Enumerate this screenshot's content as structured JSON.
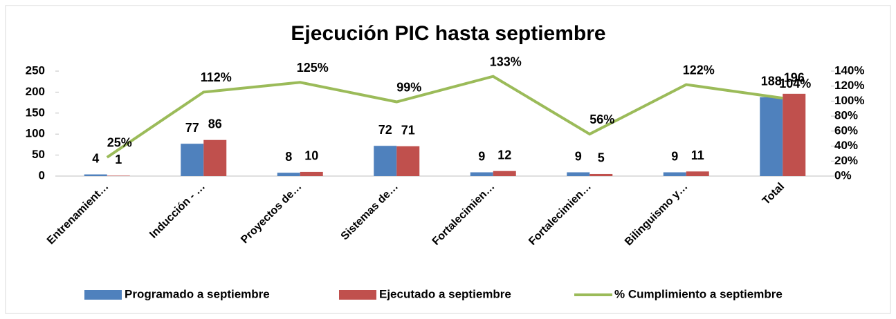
{
  "chart_data": {
    "type": "bar-line",
    "title": "Ejecución PIC hasta septiembre",
    "categories": [
      "Entrenamient…",
      "Inducción - …",
      "Proyectos de…",
      "Sistemas de…",
      "Fortalecimien…",
      "Fortalecimien…",
      "Bilinguismo y…",
      "Total"
    ],
    "series": [
      {
        "name": "Programado a septiembre",
        "type": "bar",
        "color": "#4f81bd",
        "values": [
          4,
          77,
          8,
          72,
          9,
          9,
          9,
          188
        ]
      },
      {
        "name": "Ejecutado a septiembre",
        "type": "bar",
        "color": "#c0504d",
        "values": [
          1,
          86,
          10,
          71,
          12,
          5,
          11,
          196
        ]
      },
      {
        "name": "% Cumplimiento a septiembre",
        "type": "line",
        "axis": "y2",
        "color": "#9bbb59",
        "values": [
          25,
          112,
          125,
          99,
          133,
          56,
          122,
          104
        ],
        "value_labels": [
          "25%",
          "112%",
          "125%",
          "99%",
          "133%",
          "56%",
          "122%",
          "104%"
        ]
      }
    ],
    "ylim": [
      0,
      250
    ],
    "yticks": [
      0,
      50,
      100,
      150,
      200,
      250
    ],
    "y2lim": [
      0,
      140
    ],
    "y2ticks": [
      {
        "value": 0,
        "label": "0%"
      },
      {
        "value": 20,
        "label": "20%"
      },
      {
        "value": 40,
        "label": "40%"
      },
      {
        "value": 60,
        "label": "60%"
      },
      {
        "value": 80,
        "label": "80%"
      },
      {
        "value": 100,
        "label": "100%"
      },
      {
        "value": 120,
        "label": "120%"
      },
      {
        "value": 140,
        "label": "140%"
      }
    ],
    "legend": "bottom"
  }
}
